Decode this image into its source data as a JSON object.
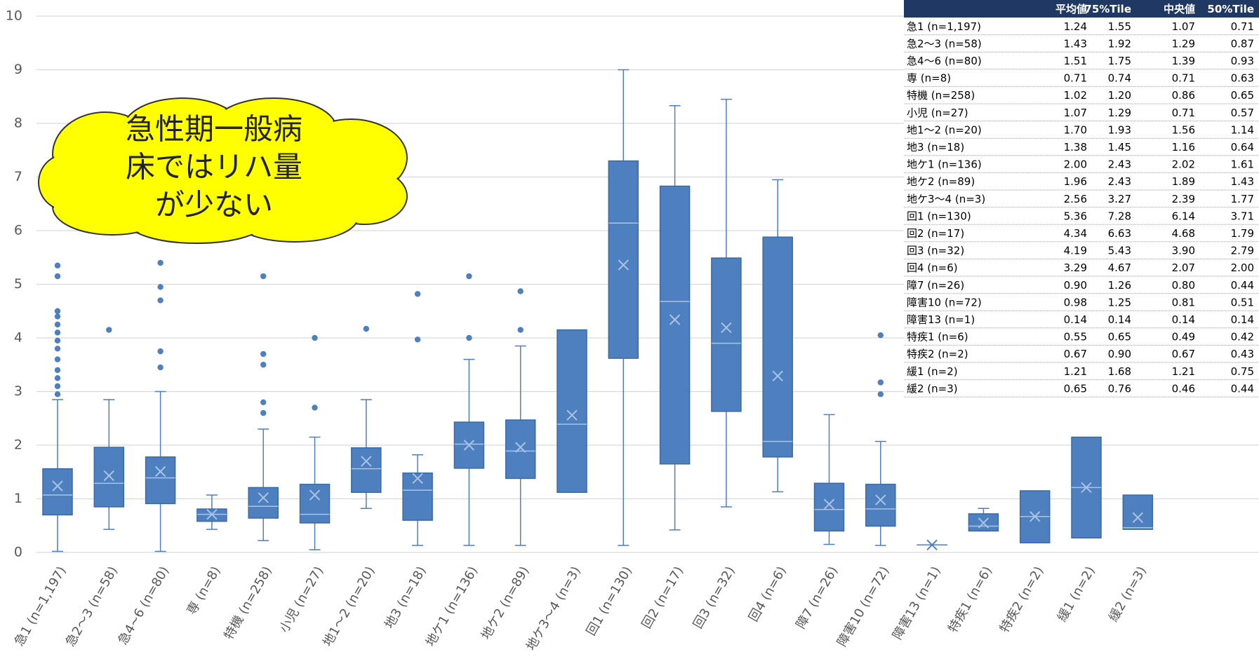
{
  "chart_data": {
    "type": "box",
    "color": "#4e7fbf",
    "grid": true,
    "ylim": [
      0,
      10
    ],
    "yticks": [
      0,
      1,
      2,
      3,
      4,
      5,
      6,
      7,
      8,
      9,
      10
    ],
    "categories": [
      "急1 (n=1,197)",
      "急2～3 (n=58)",
      "急4~6 (n=80)",
      "専 (n=8)",
      "特機 (n=258)",
      "小児 (n=27)",
      "地1～2 (n=20)",
      "地3 (n=18)",
      "地ケ1 (n=136)",
      "地ケ2 (n=89)",
      "地ケ3～4 (n=3)",
      "回1 (n=130)",
      "回2 (n=17)",
      "回3 (n=32)",
      "回4 (n=6)",
      "障7 (n=26)",
      "障害10 (n=72)",
      "障害13 (n=1)",
      "特疾1 (n=6)",
      "特疾2 (n=2)",
      "緩1 (n=2)",
      "緩2 (n=3)"
    ],
    "boxes": [
      {
        "whisker_low": 0.02,
        "q1": 0.7,
        "median": 1.07,
        "q3": 1.56,
        "whisker_high": 2.85,
        "mean": 1.24,
        "outliers": [
          2.95,
          3.1,
          3.25,
          3.4,
          3.6,
          3.8,
          3.95,
          4.1,
          4.25,
          4.4,
          4.5,
          5.15,
          5.35
        ]
      },
      {
        "whisker_low": 0.43,
        "q1": 0.85,
        "median": 1.29,
        "q3": 1.96,
        "whisker_high": 2.85,
        "mean": 1.43,
        "outliers": [
          4.15
        ]
      },
      {
        "whisker_low": 0.02,
        "q1": 0.91,
        "median": 1.39,
        "q3": 1.78,
        "whisker_high": 3.0,
        "mean": 1.51,
        "outliers": [
          3.45,
          3.75,
          4.7,
          4.95,
          5.4
        ]
      },
      {
        "whisker_low": 0.43,
        "q1": 0.58,
        "median": 0.71,
        "q3": 0.81,
        "whisker_high": 1.07,
        "mean": 0.71,
        "outliers": []
      },
      {
        "whisker_low": 0.22,
        "q1": 0.64,
        "median": 0.86,
        "q3": 1.21,
        "whisker_high": 2.3,
        "mean": 1.02,
        "outliers": [
          2.6,
          2.8,
          3.5,
          3.7,
          5.15
        ]
      },
      {
        "whisker_low": 0.05,
        "q1": 0.55,
        "median": 0.71,
        "q3": 1.27,
        "whisker_high": 2.15,
        "mean": 1.07,
        "outliers": [
          2.7,
          4.0
        ]
      },
      {
        "whisker_low": 0.82,
        "q1": 1.12,
        "median": 1.56,
        "q3": 1.95,
        "whisker_high": 2.85,
        "mean": 1.7,
        "outliers": [
          4.17
        ]
      },
      {
        "whisker_low": 0.13,
        "q1": 0.6,
        "median": 1.16,
        "q3": 1.48,
        "whisker_high": 1.82,
        "mean": 1.38,
        "outliers": [
          3.97,
          4.82
        ]
      },
      {
        "whisker_low": 0.13,
        "q1": 1.57,
        "median": 2.02,
        "q3": 2.43,
        "whisker_high": 3.6,
        "mean": 2.0,
        "outliers": [
          4.0,
          5.15
        ]
      },
      {
        "whisker_low": 0.13,
        "q1": 1.38,
        "median": 1.89,
        "q3": 2.47,
        "whisker_high": 3.85,
        "mean": 1.96,
        "outliers": [
          4.15,
          4.87
        ]
      },
      {
        "whisker_low": null,
        "q1": 1.12,
        "median": 2.39,
        "q3": 4.15,
        "whisker_high": null,
        "mean": 2.56,
        "outliers": []
      },
      {
        "whisker_low": 0.13,
        "q1": 3.62,
        "median": 6.14,
        "q3": 7.3,
        "whisker_high": 9.0,
        "mean": 5.36,
        "outliers": []
      },
      {
        "whisker_low": 0.42,
        "q1": 1.65,
        "median": 4.68,
        "q3": 6.83,
        "whisker_high": 8.33,
        "mean": 4.34,
        "outliers": []
      },
      {
        "whisker_low": 0.85,
        "q1": 2.63,
        "median": 3.9,
        "q3": 5.49,
        "whisker_high": 8.45,
        "mean": 4.19,
        "outliers": []
      },
      {
        "whisker_low": 1.13,
        "q1": 1.78,
        "median": 2.07,
        "q3": 5.88,
        "whisker_high": 6.95,
        "mean": 3.29,
        "outliers": []
      },
      {
        "whisker_low": 0.15,
        "q1": 0.4,
        "median": 0.8,
        "q3": 1.29,
        "whisker_high": 2.57,
        "mean": 0.9,
        "outliers": []
      },
      {
        "whisker_low": 0.13,
        "q1": 0.49,
        "median": 0.81,
        "q3": 1.27,
        "whisker_high": 2.07,
        "mean": 0.98,
        "outliers": [
          2.95,
          3.17,
          4.05
        ]
      },
      {
        "whisker_low": null,
        "q1": 0.14,
        "median": 0.14,
        "q3": 0.14,
        "whisker_high": null,
        "mean": 0.14,
        "outliers": []
      },
      {
        "whisker_low": 0.4,
        "q1": 0.4,
        "median": 0.49,
        "q3": 0.72,
        "whisker_high": 0.82,
        "mean": 0.55,
        "outliers": []
      },
      {
        "whisker_low": null,
        "q1": 0.18,
        "median": 0.67,
        "q3": 1.15,
        "whisker_high": null,
        "mean": 0.67,
        "outliers": []
      },
      {
        "whisker_low": null,
        "q1": 0.27,
        "median": 1.21,
        "q3": 2.15,
        "whisker_high": null,
        "mean": 1.21,
        "outliers": []
      },
      {
        "whisker_low": null,
        "q1": 0.43,
        "median": 0.46,
        "q3": 1.07,
        "whisker_high": null,
        "mean": 0.65,
        "outliers": []
      }
    ]
  },
  "callout": {
    "lines": [
      "急性期一般病",
      "床ではリハ量",
      "が少ない"
    ]
  },
  "table": {
    "columns": [
      "平均値",
      "75%Tile",
      "中央値",
      "50%Tile"
    ],
    "rows": [
      [
        "急1 (n=1,197)",
        "1.24",
        "1.55",
        "1.07",
        "0.71"
      ],
      [
        "急2～3 (n=58)",
        "1.43",
        "1.92",
        "1.29",
        "0.87"
      ],
      [
        "急4～6 (n=80)",
        "1.51",
        "1.75",
        "1.39",
        "0.93"
      ],
      [
        "専 (n=8)",
        "0.71",
        "0.74",
        "0.71",
        "0.63"
      ],
      [
        "特機 (n=258)",
        "1.02",
        "1.20",
        "0.86",
        "0.65"
      ],
      [
        "小児 (n=27)",
        "1.07",
        "1.29",
        "0.71",
        "0.57"
      ],
      [
        "地1～2 (n=20)",
        "1.70",
        "1.93",
        "1.56",
        "1.14"
      ],
      [
        "地3 (n=18)",
        "1.38",
        "1.45",
        "1.16",
        "0.64"
      ],
      [
        "地ケ1 (n=136)",
        "2.00",
        "2.43",
        "2.02",
        "1.61"
      ],
      [
        "地ケ2 (n=89)",
        "1.96",
        "2.43",
        "1.89",
        "1.43"
      ],
      [
        "地ケ3～4 (n=3)",
        "2.56",
        "3.27",
        "2.39",
        "1.77"
      ],
      [
        "回1 (n=130)",
        "5.36",
        "7.28",
        "6.14",
        "3.71"
      ],
      [
        "回2 (n=17)",
        "4.34",
        "6.63",
        "4.68",
        "1.79"
      ],
      [
        "回3 (n=32)",
        "4.19",
        "5.43",
        "3.90",
        "2.79"
      ],
      [
        "回4 (n=6)",
        "3.29",
        "4.67",
        "2.07",
        "2.00"
      ],
      [
        "障7 (n=26)",
        "0.90",
        "1.26",
        "0.80",
        "0.44"
      ],
      [
        "障害10 (n=72)",
        "0.98",
        "1.25",
        "0.81",
        "0.51"
      ],
      [
        "障害13 (n=1)",
        "0.14",
        "0.14",
        "0.14",
        "0.14"
      ],
      [
        "特疾1 (n=6)",
        "0.55",
        "0.65",
        "0.49",
        "0.42"
      ],
      [
        "特疾2 (n=2)",
        "0.67",
        "0.90",
        "0.67",
        "0.43"
      ],
      [
        "緩1 (n=2)",
        "1.21",
        "1.68",
        "1.21",
        "0.75"
      ],
      [
        "緩2 (n=3)",
        "0.65",
        "0.76",
        "0.46",
        "0.44"
      ]
    ]
  }
}
